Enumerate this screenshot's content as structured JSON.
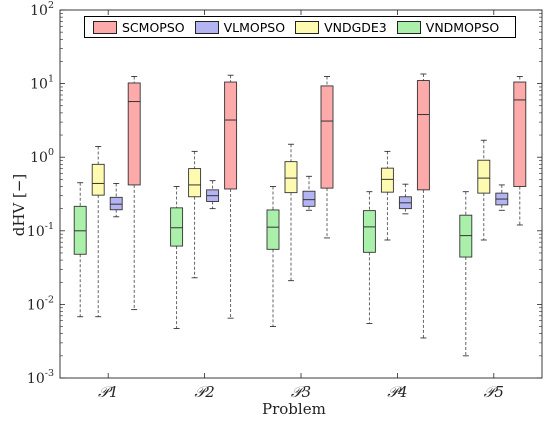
{
  "chart_data": {
    "type": "box",
    "xlabel": "Problem",
    "ylabel": "dHV [−]",
    "yscale": "log",
    "ylim": [
      0.001,
      100
    ],
    "yticks": [
      0.001,
      0.01,
      0.1,
      1,
      10,
      100
    ],
    "ytick_labels": [
      {
        "base": "10",
        "exp": "-3"
      },
      {
        "base": "10",
        "exp": "-2"
      },
      {
        "base": "10",
        "exp": "-1"
      },
      {
        "base": "10",
        "exp": "0"
      },
      {
        "base": "10",
        "exp": "1"
      },
      {
        "base": "10",
        "exp": "2"
      }
    ],
    "categories": [
      "𝒫1",
      "𝒫2",
      "𝒫3",
      "𝒫4",
      "𝒫5"
    ],
    "legend_position": "top",
    "grid": false,
    "series": [
      {
        "name": "VNDMOPSO",
        "color": "#aaf0aa",
        "stats": [
          {
            "min": 0.0068,
            "q1": 0.048,
            "median": 0.1,
            "q3": 0.215,
            "max": 0.45
          },
          {
            "min": 0.0047,
            "q1": 0.062,
            "median": 0.11,
            "q3": 0.205,
            "max": 0.4
          },
          {
            "min": 0.005,
            "q1": 0.056,
            "median": 0.112,
            "q3": 0.192,
            "max": 0.4
          },
          {
            "min": 0.0055,
            "q1": 0.051,
            "median": 0.113,
            "q3": 0.188,
            "max": 0.34
          },
          {
            "min": 0.002,
            "q1": 0.044,
            "median": 0.086,
            "q3": 0.163,
            "max": 0.34
          }
        ]
      },
      {
        "name": "VNDGDE3",
        "color": "#fefbb0",
        "stats": [
          {
            "min": 0.0068,
            "q1": 0.305,
            "median": 0.44,
            "q3": 0.8,
            "max": 1.4
          },
          {
            "min": 0.023,
            "q1": 0.29,
            "median": 0.42,
            "q3": 0.7,
            "max": 1.2
          },
          {
            "min": 0.021,
            "q1": 0.33,
            "median": 0.52,
            "q3": 0.87,
            "max": 1.5
          },
          {
            "min": 0.075,
            "q1": 0.335,
            "median": 0.5,
            "q3": 0.71,
            "max": 1.2
          },
          {
            "min": 0.075,
            "q1": 0.325,
            "median": 0.52,
            "q3": 0.91,
            "max": 1.7
          }
        ]
      },
      {
        "name": "VLMOPSO",
        "color": "#b4b4f2",
        "stats": [
          {
            "min": 0.155,
            "q1": 0.193,
            "median": 0.23,
            "q3": 0.285,
            "max": 0.44
          },
          {
            "min": 0.2,
            "q1": 0.25,
            "median": 0.3,
            "q3": 0.36,
            "max": 0.48
          },
          {
            "min": 0.19,
            "q1": 0.215,
            "median": 0.265,
            "q3": 0.345,
            "max": 0.55
          },
          {
            "min": 0.17,
            "q1": 0.2,
            "median": 0.24,
            "q3": 0.29,
            "max": 0.43
          },
          {
            "min": 0.19,
            "q1": 0.225,
            "median": 0.27,
            "q3": 0.325,
            "max": 0.42
          }
        ]
      },
      {
        "name": "SCMOPSO",
        "color": "#fcaaaa",
        "stats": [
          {
            "min": 0.0085,
            "q1": 0.42,
            "median": 5.7,
            "q3": 10.2,
            "max": 12.5
          },
          {
            "min": 0.0065,
            "q1": 0.37,
            "median": 3.2,
            "q3": 10.5,
            "max": 13
          },
          {
            "min": 0.08,
            "q1": 0.38,
            "median": 3.1,
            "q3": 9.3,
            "max": 12.5
          },
          {
            "min": 0.0035,
            "q1": 0.36,
            "median": 3.8,
            "q3": 11,
            "max": 13.5
          },
          {
            "min": 0.12,
            "q1": 0.4,
            "median": 6,
            "q3": 10.5,
            "max": 12.5
          }
        ]
      }
    ],
    "legend_order": [
      "SCMOPSO",
      "VLMOPSO",
      "VNDGDE3",
      "VNDMOPSO"
    ]
  }
}
